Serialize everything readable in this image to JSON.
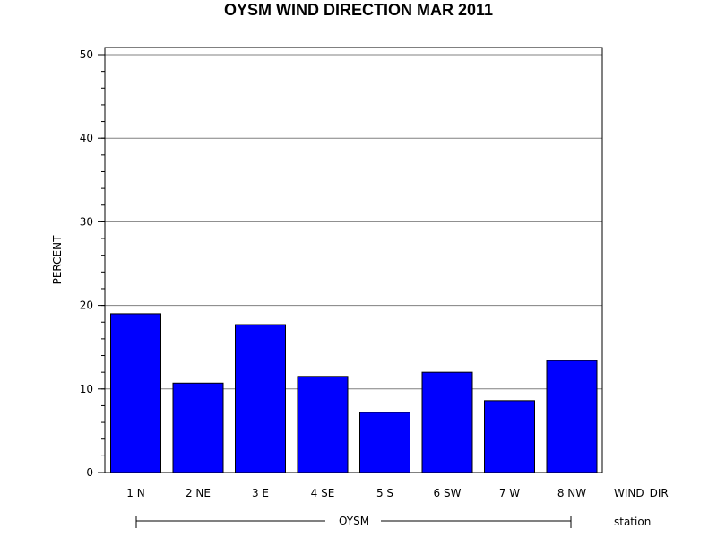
{
  "chart_data": {
    "type": "bar",
    "title": "OYSM WIND DIRECTION MAR 2011",
    "ylabel": "PERCENT",
    "xlabel": "WIND_DIR",
    "group_axis_label": "station",
    "group_name": "OYSM",
    "categories": [
      "1 N",
      "2 NE",
      "3 E",
      "4 SE",
      "5 S",
      "6 SW",
      "7 W",
      "8 NW"
    ],
    "values": [
      19.0,
      10.7,
      17.7,
      11.5,
      7.2,
      12.0,
      8.6,
      13.4
    ],
    "ylim": [
      0,
      50
    ],
    "yticks": [
      "0",
      "10",
      "20",
      "30",
      "40",
      "50"
    ],
    "grid": true,
    "bar_color": "#0000ff"
  }
}
